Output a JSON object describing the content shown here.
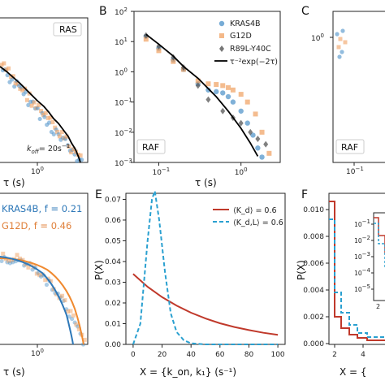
{
  "colors": {
    "blue": "#4a90c8",
    "orange": "#f0a060",
    "gray": "#555555",
    "black": "#000000",
    "red": "#c0392b",
    "cyan": "#2aa0d0"
  },
  "panel_a": {
    "tag": "RAS",
    "koff_label": "k",
    "koff_sub": "off",
    "koff_value": "= 20s",
    "koff_exp": "−1",
    "xtick": "10",
    "xtick_exp": "0",
    "xlabel": "τ (s)"
  },
  "panel_b": {
    "letter": "B",
    "tag": "RAF",
    "xlabel": "τ (s)",
    "yticks": [
      "10",
      "10",
      "10",
      "10",
      "10",
      "10"
    ],
    "ytick_exps": [
      "2",
      "1",
      "0",
      "−1",
      "−2",
      "−3"
    ],
    "xticks": [
      "10",
      "10"
    ],
    "xtick_exps": [
      "−1",
      "0"
    ],
    "legend": [
      "KRAS4B",
      "G12D",
      "R89L-Y40C",
      "τ⁻²exp(−2τ)"
    ]
  },
  "panel_c": {
    "letter": "C",
    "tag": "RAF",
    "ytick": "10",
    "ytick_exp": "0",
    "xtick": "10",
    "xtick_exp": "−1"
  },
  "panel_d": {
    "legend": [
      "KRAS4B, f = 0.21",
      "G12D, f = 0.46"
    ],
    "xtick": "10",
    "xtick_exp": "0",
    "xlabel": "τ (s)"
  },
  "panel_e": {
    "letter": "E",
    "ylabel": "P(X)",
    "xlabel": "X = {k_on, k₁} (s⁻¹)",
    "legend": [
      "⟨K_d⟩ = 0.6",
      "⟨K_d,L⟩ = 0.6"
    ],
    "yticks": [
      "0.00",
      "0.01",
      "0.02",
      "0.03",
      "0.04",
      "0.05",
      "0.06",
      "0.07"
    ],
    "xticks": [
      "0",
      "20",
      "40",
      "60",
      "80",
      "100"
    ]
  },
  "panel_f": {
    "letter": "F",
    "ylabel": "P(X)",
    "xlabel": "X = {",
    "yticks": [
      "0.010",
      "0.008",
      "0.006",
      "0.004",
      "0.002",
      "0.000"
    ],
    "xticks": [
      "2",
      "4"
    ],
    "inset_ytick": "10",
    "inset_ytick_exps": [
      "−1",
      "−2",
      "−3",
      "−4",
      "−5"
    ],
    "inset_xtick": "2"
  },
  "chart_data": [
    {
      "type": "scatter",
      "panel": "B",
      "xscale": "log",
      "yscale": "log",
      "xlim": [
        0.05,
        3
      ],
      "ylim": [
        0.001,
        100
      ],
      "xlabel": "τ (s)",
      "series": [
        {
          "name": "KRAS4B",
          "x": [
            0.07,
            0.1,
            0.15,
            0.2,
            0.3,
            0.4,
            0.5,
            0.6,
            0.7,
            0.8,
            1.0,
            1.2,
            1.4,
            1.6,
            1.8
          ],
          "y": [
            15,
            6,
            2.5,
            1.2,
            0.4,
            0.25,
            0.22,
            0.2,
            0.15,
            0.1,
            0.05,
            0.02,
            0.008,
            0.003,
            0.0015
          ]
        },
        {
          "name": "G12D",
          "x": [
            0.07,
            0.1,
            0.15,
            0.2,
            0.3,
            0.4,
            0.5,
            0.6,
            0.7,
            0.8,
            1.0,
            1.2,
            1.5,
            1.8,
            2.2
          ],
          "y": [
            12,
            5,
            2.2,
            1.2,
            0.5,
            0.4,
            0.38,
            0.35,
            0.3,
            0.25,
            0.18,
            0.1,
            0.04,
            0.01,
            0.002
          ]
        },
        {
          "name": "R89L-Y40C",
          "x": [
            0.07,
            0.1,
            0.15,
            0.2,
            0.3,
            0.4,
            0.6,
            0.8,
            1.0,
            1.3,
            1.6,
            2.0
          ],
          "y": [
            16,
            7,
            3,
            1.4,
            0.35,
            0.12,
            0.05,
            0.03,
            0.02,
            0.01,
            0.006,
            0.004
          ]
        },
        {
          "name": "τ⁻²exp(−2τ)",
          "x": [
            0.07,
            0.1,
            0.15,
            0.2,
            0.3,
            0.5,
            0.7,
            1.0,
            1.3,
            1.6
          ],
          "y": [
            17.4,
            8.2,
            3.3,
            1.5,
            0.61,
            0.15,
            0.05,
            0.0135,
            0.0044,
            0.0016
          ]
        }
      ]
    },
    {
      "type": "line",
      "panel": "E",
      "xlim": [
        -5,
        105
      ],
      "ylim": [
        0,
        0.07
      ],
      "xlabel": "X = {k_on, k₁} (s⁻¹)",
      "ylabel": "P(X)",
      "series": [
        {
          "name": "⟨K_d⟩ = 0.6",
          "x": [
            0,
            10,
            20,
            30,
            40,
            50,
            60,
            70,
            80,
            90,
            100
          ],
          "y": [
            0.034,
            0.0278,
            0.0228,
            0.0187,
            0.0153,
            0.0125,
            0.0102,
            0.0084,
            0.0069,
            0.0056,
            0.0046
          ]
        },
        {
          "name": "⟨K_d,L⟩ = 0.6",
          "x": [
            0,
            5,
            10,
            13,
            15,
            18,
            22,
            26,
            30,
            35,
            40,
            50,
            60,
            100
          ],
          "y": [
            0.0,
            0.01,
            0.05,
            0.07,
            0.074,
            0.06,
            0.035,
            0.015,
            0.006,
            0.002,
            0.0005,
            0.0,
            0.0,
            0.0
          ]
        }
      ]
    }
  ]
}
